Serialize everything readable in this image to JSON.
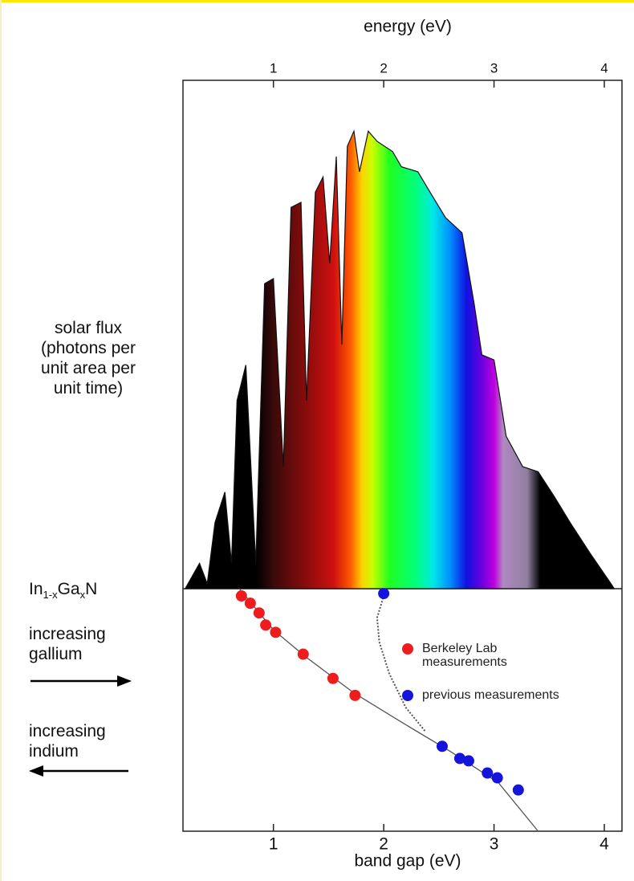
{
  "chart_data": [
    {
      "type": "area",
      "x_label": "energy (eV)",
      "y_label": "solar flux\n(photons per\nunit area per\nunit time)",
      "x": [
        0.2,
        0.33,
        0.4,
        0.47,
        0.56,
        0.62,
        0.67,
        0.75,
        0.84,
        0.92,
        1.0,
        1.09,
        1.16,
        1.25,
        1.3,
        1.38,
        1.45,
        1.51,
        1.57,
        1.62,
        1.67,
        1.73,
        1.78,
        1.86,
        1.94,
        2.08,
        2.16,
        2.31,
        2.42,
        2.56,
        2.71,
        2.82,
        2.89,
        3.0,
        3.11,
        3.26,
        3.4,
        3.55,
        3.69,
        3.87,
        4.06,
        4.09
      ],
      "values": [
        0,
        5,
        1,
        13,
        19,
        5,
        37,
        44,
        5,
        60,
        61,
        24,
        75,
        76,
        37,
        78,
        81,
        64,
        85,
        48,
        87,
        90,
        82,
        90,
        88,
        86,
        83,
        82,
        78,
        73,
        70,
        56,
        46,
        45,
        30,
        24,
        23,
        18,
        13,
        7,
        1,
        0
      ],
      "xlim": [
        0.18,
        4.16
      ],
      "ylim": [
        0,
        100
      ],
      "xticks": [
        1,
        2,
        3,
        4
      ]
    },
    {
      "type": "scatter",
      "x_label": "band gap (eV)",
      "material": [
        "In",
        "1-x",
        "Ga",
        "x",
        "N"
      ],
      "annotations": [
        "increasing\ngallium",
        "increasing\nindium"
      ],
      "xlim": [
        0.18,
        4.16
      ],
      "ylim": [
        100,
        0
      ],
      "xticks": [
        1,
        2,
        3,
        4
      ],
      "series": [
        {
          "name": "Berkeley Lab\nmeasurements",
          "color": "#ee1c1c",
          "x": [
            0.71,
            0.79,
            0.87,
            0.93,
            1.02,
            1.27,
            1.54,
            1.74
          ],
          "values": [
            3,
            6,
            10,
            15,
            18,
            27,
            37,
            44
          ]
        },
        {
          "name": "previous measurements",
          "color": "#1414dc",
          "x": [
            2.0,
            2.53,
            2.69,
            2.77,
            2.94,
            3.03,
            3.22
          ],
          "values": [
            2,
            65,
            70,
            71,
            76,
            78,
            83
          ]
        }
      ],
      "curves": [
        {
          "style": "solid",
          "color": "#555555",
          "x": [
            0.69,
            1.0,
            1.29,
            1.73,
            2.16,
            2.6,
            3.04,
            3.4
          ],
          "values": [
            0,
            17,
            28,
            43,
            55,
            67,
            80,
            100
          ]
        },
        {
          "style": "dotted",
          "color": "#555555",
          "x": [
            2.02,
            1.94,
            1.96,
            2.05,
            2.2,
            2.38
          ],
          "values": [
            0,
            12,
            22,
            35,
            49,
            59
          ]
        }
      ]
    }
  ]
}
